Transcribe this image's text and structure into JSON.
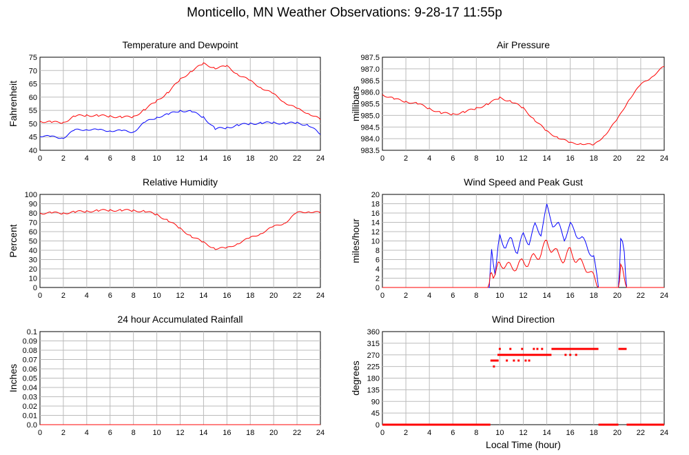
{
  "page": {
    "title": "Monticello, MN Weather Observations: 9-28-17 11:55p",
    "x_axis_label": "Local Time (hour)"
  },
  "colors": {
    "red": "#ff0000",
    "blue": "#0000ff",
    "grid": "#bbbbbb",
    "axis": "#000000"
  },
  "chart_data": [
    {
      "id": "temp",
      "type": "line",
      "title": "Temperature and Dewpoint",
      "ylabel": "Fahrenheit",
      "xlim": [
        0,
        24
      ],
      "ylim": [
        40,
        75
      ],
      "xticks": [
        0,
        2,
        4,
        6,
        8,
        10,
        12,
        14,
        16,
        18,
        20,
        22,
        24
      ],
      "yticks": [
        "40",
        "45",
        "50",
        "55",
        "60",
        "65",
        "70",
        "75"
      ],
      "grid": true,
      "x": [
        0,
        1,
        2,
        3,
        4,
        5,
        6,
        7,
        8,
        9,
        10,
        11,
        12,
        13,
        14,
        15,
        16,
        17,
        18,
        19,
        20,
        21,
        22,
        23,
        24
      ],
      "series": [
        {
          "color": "red",
          "values": [
            51,
            50.5,
            50.5,
            52.8,
            53.2,
            53,
            52.8,
            52.5,
            52.5,
            55.5,
            58.5,
            62,
            66.5,
            70,
            72.5,
            71,
            71.5,
            68.5,
            66,
            63.5,
            61,
            58,
            55.5,
            54,
            51.5
          ]
        },
        {
          "color": "blue",
          "values": [
            45.5,
            45,
            44.8,
            47.5,
            48,
            47.5,
            47.5,
            47.2,
            47,
            50.5,
            52.5,
            53.5,
            55,
            54.5,
            52.5,
            48,
            48.5,
            49.5,
            50,
            50.3,
            50.3,
            50.2,
            50.2,
            49.5,
            46
          ]
        }
      ]
    },
    {
      "id": "pressure",
      "type": "line",
      "title": "Air Pressure",
      "ylabel": "millibars",
      "xlim": [
        0,
        24
      ],
      "ylim": [
        983.5,
        987.5
      ],
      "xticks": [
        0,
        2,
        4,
        6,
        8,
        10,
        12,
        14,
        16,
        18,
        20,
        22,
        24
      ],
      "yticks": [
        "983.5",
        "984.0",
        "984.5",
        "985.0",
        "985.5",
        "986.0",
        "986.5",
        "987.0",
        "987.5"
      ],
      "grid": true,
      "x": [
        0,
        1,
        2,
        3,
        4,
        5,
        6,
        7,
        8,
        9,
        10,
        11,
        12,
        13,
        14,
        15,
        16,
        17,
        18,
        19,
        20,
        21,
        22,
        23,
        24
      ],
      "series": [
        {
          "color": "red",
          "values": [
            985.9,
            985.7,
            985.6,
            985.5,
            985.3,
            985.1,
            985.05,
            985.15,
            985.3,
            985.5,
            985.75,
            985.6,
            985.3,
            984.8,
            984.3,
            984.05,
            983.8,
            983.8,
            983.7,
            984.2,
            984.8,
            985.7,
            986.3,
            986.7,
            987.1
          ]
        }
      ]
    },
    {
      "id": "humidity",
      "type": "line",
      "title": "Relative Humidity",
      "ylabel": "Percent",
      "xlim": [
        0,
        24
      ],
      "ylim": [
        0,
        100
      ],
      "xticks": [
        0,
        2,
        4,
        6,
        8,
        10,
        12,
        14,
        16,
        18,
        20,
        22,
        24
      ],
      "yticks": [
        "0",
        "10",
        "20",
        "30",
        "40",
        "50",
        "60",
        "70",
        "80",
        "90",
        "100"
      ],
      "grid": true,
      "x": [
        0,
        1,
        2,
        3,
        4,
        5,
        6,
        7,
        8,
        9,
        10,
        11,
        12,
        13,
        14,
        15,
        16,
        17,
        18,
        19,
        20,
        21,
        22,
        23,
        24
      ],
      "series": [
        {
          "color": "red",
          "values": [
            80,
            80,
            80,
            81,
            82,
            82.5,
            83,
            83,
            82.5,
            82,
            78,
            72,
            63,
            55,
            48,
            42,
            42,
            48,
            53,
            59,
            65,
            70,
            80,
            82,
            80
          ]
        }
      ]
    },
    {
      "id": "wind",
      "type": "line",
      "title": "Wind Speed and Peak Gust",
      "ylabel": "miles/hour",
      "xlim": [
        0,
        24
      ],
      "ylim": [
        0,
        20
      ],
      "xticks": [
        0,
        2,
        4,
        6,
        8,
        10,
        12,
        14,
        16,
        18,
        20,
        22,
        24
      ],
      "yticks": [
        "0",
        "2",
        "4",
        "6",
        "8",
        "10",
        "12",
        "14",
        "16",
        "18",
        "20"
      ],
      "grid": true,
      "x": [
        0,
        9.1,
        9.3,
        9.6,
        10,
        10.5,
        11,
        11.5,
        12,
        12.5,
        13,
        13.5,
        14,
        14.5,
        15,
        15.5,
        16,
        16.5,
        17,
        17.5,
        18,
        18.4,
        18.5,
        20.1,
        20.3,
        20.6,
        20.8,
        20.9,
        24
      ],
      "series": [
        {
          "color": "blue",
          "values": [
            0,
            0,
            8,
            3,
            11,
            9,
            10,
            8,
            11,
            10,
            13,
            12,
            17,
            14,
            13,
            11,
            13,
            12,
            10,
            9,
            6,
            0,
            0,
            0,
            10,
            8,
            0,
            0,
            0
          ]
        },
        {
          "color": "red",
          "values": [
            0,
            0,
            4,
            2,
            6,
            4,
            5,
            4,
            6,
            5,
            7,
            7,
            10,
            8,
            7,
            6,
            8,
            6,
            5,
            4,
            2,
            0,
            0,
            0,
            4,
            3,
            0,
            0,
            0
          ]
        }
      ]
    },
    {
      "id": "rain",
      "type": "line",
      "title": "24 hour Accumulated Rainfall",
      "ylabel": "Inches",
      "xlim": [
        0,
        24
      ],
      "ylim": [
        0,
        0.1
      ],
      "xticks": [
        0,
        2,
        4,
        6,
        8,
        10,
        12,
        14,
        16,
        18,
        20,
        22,
        24
      ],
      "yticks": [
        "0.0",
        "0.01",
        "0.02",
        "0.03",
        "0.04",
        "0.05",
        "0.06",
        "0.07",
        "0.08",
        "0.09",
        "0.1"
      ],
      "grid": true,
      "x": [
        0,
        24
      ],
      "series": [
        {
          "color": "red",
          "values": [
            0,
            0
          ]
        }
      ]
    },
    {
      "id": "winddir",
      "type": "scatter",
      "title": "Wind Direction",
      "ylabel": "degrees",
      "xlabel": "Local Time (hour)",
      "xlim": [
        0,
        24
      ],
      "ylim": [
        0,
        360
      ],
      "xticks": [
        0,
        2,
        4,
        6,
        8,
        10,
        12,
        14,
        16,
        18,
        20,
        22,
        24
      ],
      "yticks": [
        "0",
        "45",
        "90",
        "135",
        "180",
        "225",
        "270",
        "315",
        "360"
      ],
      "grid": true,
      "series": [
        {
          "color": "red",
          "segments": [
            {
              "x0": 0,
              "x1": 9.2,
              "y": 0
            },
            {
              "x0": 18.4,
              "x1": 20.1,
              "y": 0
            },
            {
              "x0": 20.8,
              "x1": 24,
              "y": 0
            },
            {
              "x0": 9.2,
              "x1": 9.9,
              "y": 248
            },
            {
              "x0": 9.8,
              "x1": 14.4,
              "y": 270
            },
            {
              "x0": 14.4,
              "x1": 18.4,
              "y": 293
            },
            {
              "x0": 20.1,
              "x1": 20.8,
              "y": 293
            }
          ],
          "points": [
            {
              "x": 9.5,
              "y": 225
            },
            {
              "x": 10.0,
              "y": 293
            },
            {
              "x": 10.6,
              "y": 248
            },
            {
              "x": 10.9,
              "y": 293
            },
            {
              "x": 11.2,
              "y": 248
            },
            {
              "x": 11.6,
              "y": 248
            },
            {
              "x": 12.2,
              "y": 248
            },
            {
              "x": 12.5,
              "y": 248
            },
            {
              "x": 11.9,
              "y": 293
            },
            {
              "x": 12.9,
              "y": 293
            },
            {
              "x": 13.2,
              "y": 293
            },
            {
              "x": 13.6,
              "y": 293
            },
            {
              "x": 15.6,
              "y": 270
            },
            {
              "x": 16.0,
              "y": 270
            },
            {
              "x": 16.5,
              "y": 270
            }
          ]
        }
      ]
    }
  ]
}
